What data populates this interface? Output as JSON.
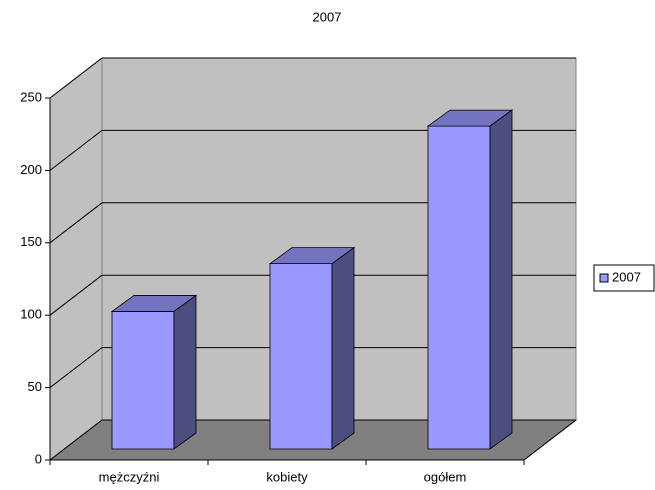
{
  "chart_data": {
    "type": "bar3d",
    "title": "2007",
    "categories": [
      "mężczyźni",
      "kobiety",
      "ogółem"
    ],
    "series": [
      {
        "name": "2007",
        "color": "#9999ff",
        "values": [
          95,
          128,
          223
        ]
      }
    ],
    "ylim": [
      0,
      250
    ],
    "yticks": [
      0,
      50,
      100,
      150,
      200,
      250
    ],
    "grid": true,
    "legend": "right"
  }
}
